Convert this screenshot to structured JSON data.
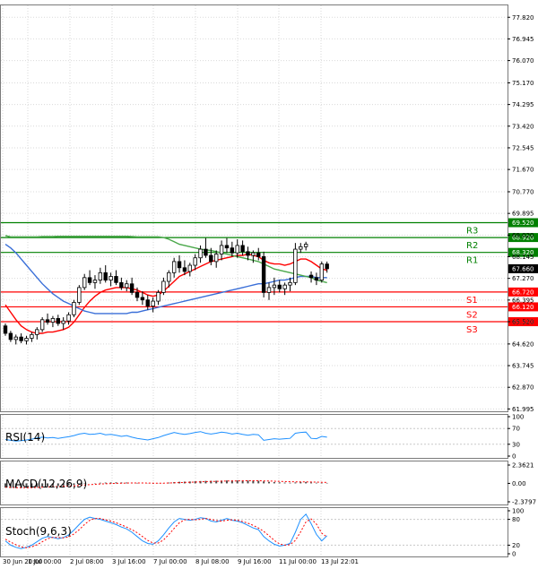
{
  "chart_data": {
    "type": "candlestick",
    "price_axis": {
      "range": [
        61.9,
        78.3
      ],
      "ticks": [
        "77.820",
        "76.945",
        "76.070",
        "75.170",
        "74.295",
        "73.420",
        "72.545",
        "71.670",
        "70.770",
        "69.895",
        "69.020",
        "68.145",
        "67.270",
        "66.395",
        "65.520",
        "64.620",
        "63.745",
        "62.870",
        "61.995"
      ]
    },
    "time_labels": [
      "30 Jun 20:00",
      "1 Jul 00:00",
      "2 Jul 08:00",
      "3 Jul 16:00",
      "7 Jul 00:00",
      "8 Jul 08:00",
      "9 Jul 16:00",
      "11 Jul 00:00",
      "13 Jul 22:01"
    ],
    "levels": [
      {
        "name": "R3",
        "value": 69.52,
        "label": "69.520",
        "color": "#008000"
      },
      {
        "name": "R2",
        "value": 68.92,
        "label": "68.920",
        "color": "#008000"
      },
      {
        "name": "R1",
        "value": 68.32,
        "label": "68.320",
        "color": "#008000"
      },
      {
        "name": "S1",
        "value": 66.72,
        "label": "66.720",
        "color": "#ff0000"
      },
      {
        "name": "S2",
        "value": 66.12,
        "label": "66.120",
        "color": "#ff0000"
      },
      {
        "name": "S3",
        "value": 65.52,
        "label": "65.520",
        "color": "#ff0000"
      }
    ],
    "current_price": {
      "value": 67.66,
      "label": "67.660"
    },
    "candles": [
      [
        65.35,
        65.45,
        64.95,
        65.05
      ],
      [
        65.05,
        65.15,
        64.7,
        64.8
      ],
      [
        64.8,
        65.0,
        64.6,
        64.9
      ],
      [
        64.9,
        65.05,
        64.65,
        64.75
      ],
      [
        64.75,
        64.95,
        64.6,
        64.85
      ],
      [
        64.85,
        65.1,
        64.7,
        65.0
      ],
      [
        65.0,
        65.3,
        64.8,
        65.2
      ],
      [
        65.2,
        65.7,
        65.1,
        65.6
      ],
      [
        65.6,
        65.85,
        65.4,
        65.5
      ],
      [
        65.5,
        65.75,
        65.3,
        65.65
      ],
      [
        65.65,
        65.8,
        65.35,
        65.45
      ],
      [
        65.45,
        65.7,
        65.2,
        65.55
      ],
      [
        65.55,
        65.9,
        65.4,
        65.8
      ],
      [
        65.8,
        66.4,
        65.7,
        66.3
      ],
      [
        66.3,
        67.0,
        66.2,
        66.9
      ],
      [
        66.9,
        67.45,
        66.8,
        67.3
      ],
      [
        67.3,
        67.6,
        67.0,
        67.1
      ],
      [
        67.1,
        67.4,
        66.85,
        67.2
      ],
      [
        67.2,
        67.7,
        67.05,
        67.5
      ],
      [
        67.5,
        67.8,
        67.1,
        67.2
      ],
      [
        67.2,
        67.5,
        66.95,
        67.35
      ],
      [
        67.35,
        67.6,
        67.0,
        67.1
      ],
      [
        67.1,
        67.3,
        66.8,
        66.9
      ],
      [
        66.9,
        67.2,
        66.75,
        67.05
      ],
      [
        67.05,
        67.3,
        66.6,
        66.7
      ],
      [
        66.7,
        66.9,
        66.35,
        66.5
      ],
      [
        66.5,
        66.75,
        66.2,
        66.4
      ],
      [
        66.4,
        66.6,
        66.0,
        66.15
      ],
      [
        66.15,
        66.5,
        65.9,
        66.35
      ],
      [
        66.35,
        66.8,
        66.2,
        66.7
      ],
      [
        66.7,
        67.3,
        66.6,
        67.15
      ],
      [
        67.15,
        67.6,
        66.9,
        67.5
      ],
      [
        67.5,
        68.1,
        67.3,
        67.95
      ],
      [
        67.95,
        68.2,
        67.5,
        67.7
      ],
      [
        67.7,
        68.0,
        67.4,
        67.55
      ],
      [
        67.55,
        67.9,
        67.35,
        67.8
      ],
      [
        67.8,
        68.25,
        67.6,
        68.1
      ],
      [
        68.1,
        68.6,
        67.9,
        68.45
      ],
      [
        68.45,
        68.9,
        68.1,
        68.2
      ],
      [
        68.2,
        68.5,
        67.8,
        67.95
      ],
      [
        67.95,
        68.4,
        67.7,
        68.25
      ],
      [
        68.25,
        68.8,
        68.0,
        68.6
      ],
      [
        68.6,
        68.9,
        68.3,
        68.5
      ],
      [
        68.5,
        68.75,
        68.15,
        68.3
      ],
      [
        68.3,
        68.85,
        68.1,
        68.6
      ],
      [
        68.6,
        68.8,
        68.2,
        68.35
      ],
      [
        68.35,
        68.55,
        68.0,
        68.2
      ],
      [
        68.2,
        68.4,
        67.9,
        68.3
      ],
      [
        68.3,
        68.5,
        68.0,
        68.15
      ],
      [
        68.15,
        68.35,
        66.5,
        66.7
      ],
      [
        66.7,
        67.1,
        66.4,
        66.9
      ],
      [
        66.9,
        67.3,
        66.6,
        67.0
      ],
      [
        67.0,
        67.2,
        66.7,
        66.85
      ],
      [
        66.85,
        67.1,
        66.6,
        67.0
      ],
      [
        67.0,
        67.3,
        66.75,
        67.1
      ],
      [
        67.1,
        68.7,
        67.0,
        68.45
      ],
      [
        68.45,
        68.7,
        68.3,
        68.55
      ],
      [
        68.55,
        68.75,
        68.4,
        68.65
      ],
      [
        67.4,
        67.55,
        67.1,
        67.3
      ],
      [
        67.3,
        67.5,
        67.0,
        67.2
      ],
      [
        67.2,
        67.95,
        67.1,
        67.85
      ],
      [
        67.85,
        67.95,
        67.5,
        67.66
      ]
    ],
    "moving_averages": [
      {
        "name": "MA-fast",
        "color": "#ff0000",
        "values": [
          66.2,
          65.9,
          65.6,
          65.35,
          65.2,
          65.1,
          65.05,
          65.05,
          65.1,
          65.1,
          65.15,
          65.2,
          65.3,
          65.5,
          65.8,
          66.1,
          66.35,
          66.55,
          66.7,
          66.8,
          66.85,
          66.9,
          66.9,
          66.9,
          66.85,
          66.8,
          66.7,
          66.6,
          66.55,
          66.6,
          66.75,
          66.95,
          67.15,
          67.35,
          67.45,
          67.55,
          67.65,
          67.75,
          67.85,
          67.95,
          68.0,
          68.05,
          68.1,
          68.15,
          68.2,
          68.2,
          68.25,
          68.2,
          68.15,
          68.0,
          67.9,
          67.85,
          67.85,
          67.8,
          67.85,
          67.95,
          68.05,
          68.05,
          67.95,
          67.8,
          67.65,
          67.6
        ]
      },
      {
        "name": "MA-mid",
        "color": "#3a6fd8",
        "values": [
          68.65,
          68.5,
          68.3,
          68.05,
          67.8,
          67.55,
          67.3,
          67.05,
          66.85,
          66.65,
          66.5,
          66.35,
          66.25,
          66.15,
          66.05,
          65.95,
          65.9,
          65.85,
          65.85,
          65.85,
          65.85,
          65.85,
          65.85,
          65.85,
          65.9,
          65.9,
          65.95,
          66.0,
          66.05,
          66.1,
          66.15,
          66.2,
          66.25,
          66.3,
          66.35,
          66.4,
          66.45,
          66.5,
          66.55,
          66.6,
          66.65,
          66.7,
          66.75,
          66.8,
          66.85,
          66.9,
          66.95,
          67.0,
          67.05,
          67.05,
          67.1,
          67.15,
          67.2,
          67.2,
          67.25,
          67.3,
          67.35,
          67.35,
          67.35,
          67.3,
          67.3,
          67.3
        ]
      },
      {
        "name": "MA-slow",
        "color": "#4aa84a",
        "values": [
          69.0,
          68.95,
          68.95,
          68.95,
          68.95,
          68.95,
          68.95,
          68.96,
          68.96,
          68.96,
          68.97,
          68.97,
          68.97,
          68.97,
          68.97,
          68.97,
          68.97,
          68.97,
          68.97,
          68.97,
          68.97,
          68.97,
          68.97,
          68.97,
          68.96,
          68.95,
          68.95,
          68.95,
          68.95,
          68.95,
          68.92,
          68.85,
          68.75,
          68.65,
          68.6,
          68.55,
          68.5,
          68.45,
          68.42,
          68.4,
          68.35,
          68.3,
          68.25,
          68.2,
          68.15,
          68.1,
          68.05,
          68.0,
          67.95,
          67.85,
          67.75,
          67.65,
          67.6,
          67.55,
          67.5,
          67.45,
          67.4,
          67.35,
          67.3,
          67.2,
          67.15,
          67.1
        ]
      }
    ],
    "indicators": [
      {
        "name": "RSI(14)",
        "range": [
          0,
          100
        ],
        "ticks": [
          "100",
          "70",
          "30",
          "0"
        ],
        "levels": [
          70,
          30
        ],
        "color": "#1e90ff",
        "values": [
          42,
          40,
          38,
          39,
          41,
          43,
          46,
          48,
          46,
          47,
          45,
          47,
          49,
          52,
          56,
          58,
          55,
          56,
          58,
          54,
          55,
          53,
          50,
          52,
          48,
          45,
          43,
          41,
          44,
          47,
          52,
          56,
          60,
          57,
          55,
          57,
          60,
          62,
          58,
          56,
          58,
          61,
          59,
          56,
          58,
          55,
          53,
          55,
          54,
          40,
          42,
          44,
          43,
          44,
          45,
          58,
          60,
          61,
          45,
          44,
          50,
          48
        ]
      },
      {
        "name": "MACD(12,26,9)",
        "range": [
          -2.3797,
          2.3621
        ],
        "ticks": [
          "2.3621",
          "0.00",
          "-2.3797"
        ],
        "color": "#ff0000",
        "hist_color": "#4a4a4a",
        "hist": [
          -0.55,
          -0.6,
          -0.62,
          -0.6,
          -0.58,
          -0.55,
          -0.5,
          -0.45,
          -0.4,
          -0.36,
          -0.33,
          -0.3,
          -0.26,
          -0.2,
          -0.12,
          -0.05,
          0.0,
          0.04,
          0.08,
          0.1,
          0.12,
          0.13,
          0.12,
          0.11,
          0.1,
          0.06,
          0.02,
          -0.02,
          -0.04,
          -0.02,
          0.04,
          0.1,
          0.16,
          0.2,
          0.22,
          0.24,
          0.27,
          0.3,
          0.32,
          0.33,
          0.34,
          0.36,
          0.37,
          0.37,
          0.38,
          0.37,
          0.36,
          0.35,
          0.33,
          0.25,
          0.2,
          0.16,
          0.13,
          0.1,
          0.08,
          0.12,
          0.16,
          0.18,
          0.12,
          0.08,
          0.07,
          0.06
        ],
        "signal": [
          -0.5,
          -0.52,
          -0.55,
          -0.56,
          -0.56,
          -0.55,
          -0.53,
          -0.5,
          -0.47,
          -0.44,
          -0.41,
          -0.38,
          -0.35,
          -0.31,
          -0.26,
          -0.21,
          -0.16,
          -0.12,
          -0.08,
          -0.05,
          -0.02,
          0.0,
          0.02,
          0.04,
          0.05,
          0.05,
          0.05,
          0.04,
          0.03,
          0.02,
          0.03,
          0.05,
          0.07,
          0.1,
          0.12,
          0.15,
          0.17,
          0.2,
          0.22,
          0.24,
          0.26,
          0.28,
          0.3,
          0.31,
          0.32,
          0.33,
          0.34,
          0.34,
          0.34,
          0.32,
          0.3,
          0.28,
          0.26,
          0.23,
          0.21,
          0.2,
          0.19,
          0.19,
          0.18,
          0.16,
          0.14,
          0.12
        ]
      },
      {
        "name": "Stoch(9,6,3)",
        "range": [
          0,
          100
        ],
        "ticks": [
          "100",
          "80",
          "20",
          "0"
        ],
        "levels": [
          80,
          20
        ],
        "color": "#1e90ff",
        "signal_color": "#ff0000",
        "k": [
          30,
          20,
          15,
          12,
          15,
          20,
          28,
          36,
          40,
          38,
          35,
          38,
          44,
          55,
          68,
          80,
          85,
          82,
          80,
          76,
          72,
          68,
          62,
          58,
          50,
          40,
          30,
          24,
          22,
          30,
          44,
          60,
          74,
          82,
          80,
          78,
          80,
          84,
          82,
          76,
          74,
          78,
          82,
          78,
          76,
          72,
          66,
          60,
          56,
          40,
          30,
          22,
          18,
          20,
          24,
          50,
          80,
          92,
          70,
          45,
          30,
          42
        ],
        "d": [
          34,
          27,
          21,
          16,
          14,
          16,
          21,
          28,
          35,
          38,
          38,
          37,
          39,
          46,
          56,
          68,
          78,
          82,
          82,
          79,
          76,
          72,
          67,
          62,
          56,
          49,
          40,
          31,
          25,
          25,
          32,
          45,
          59,
          72,
          79,
          80,
          79,
          80,
          82,
          80,
          77,
          76,
          78,
          79,
          78,
          75,
          71,
          66,
          60,
          52,
          42,
          31,
          23,
          20,
          21,
          31,
          51,
          74,
          81,
          69,
          48,
          39
        ]
      }
    ]
  }
}
